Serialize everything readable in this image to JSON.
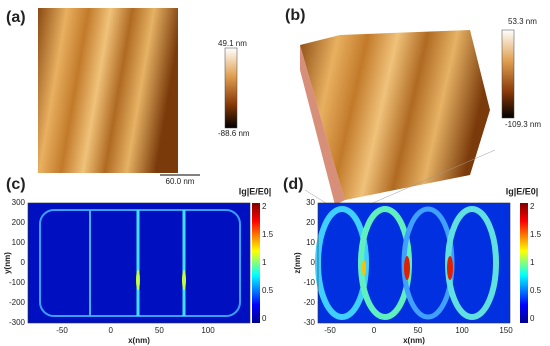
{
  "panels": [
    {
      "label": "(a)",
      "scale_bar": "60.0 nm",
      "colorbar": [
        "49.1 nm",
        "-88.6 nm"
      ]
    },
    {
      "label": "(b)",
      "colorbar": [
        "53.3 nm",
        "-109.3 nm"
      ]
    },
    {
      "label": "(c)",
      "colorbar_title": "lg|E/E0|",
      "colorbar_ticks": [
        "2",
        "1.5",
        "1",
        "0.5",
        "0"
      ],
      "x_label": "x(nm)",
      "y_label": "y(nm)",
      "x_ticks": [
        "-50",
        "0",
        "50",
        "100"
      ],
      "y_ticks": [
        "300",
        "200",
        "100",
        "0",
        "-100",
        "-200",
        "-300"
      ]
    },
    {
      "label": "(d)",
      "colorbar_title": "lg|E/E0|",
      "colorbar_ticks": [
        "2",
        "1.5",
        "1",
        "0.5",
        "0"
      ],
      "x_label": "x(nm)",
      "y_label": "z(nm)",
      "x_ticks": [
        "-50",
        "0",
        "50",
        "100",
        "150"
      ],
      "y_ticks": [
        "30",
        "20",
        "10",
        "0",
        "-10",
        "-20",
        "-30"
      ]
    }
  ]
}
